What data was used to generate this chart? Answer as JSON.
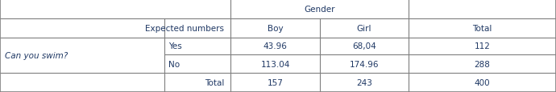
{
  "figsize": [
    6.9,
    1.16
  ],
  "dpi": 100,
  "bg_color": "#ffffff",
  "text_color": "#1f3864",
  "line_color": "#7f7f7f",
  "font_size": 7.5,
  "col_boundaries": [
    0.0,
    0.295,
    0.415,
    0.575,
    0.735,
    1.0
  ],
  "row_boundaries": [
    1.0,
    0.795,
    0.59,
    0.405,
    0.205,
    0.0
  ],
  "cells": {
    "row0_col01_merged": "",
    "row0_gender": "Gender",
    "row0_total": "",
    "row1_expected": "Expected numbers",
    "row1_boy": "Boy",
    "row1_girl": "Girl",
    "row1_total": "Total",
    "row2_canswim": "Can you swim?",
    "row2_yes": "Yes",
    "row2_v1": "43.96",
    "row2_v2": "68,04",
    "row2_v3": "112",
    "row3_no": "No",
    "row3_v1": "113.04",
    "row3_v2": "174.96",
    "row3_v3": "288",
    "row4_total_label": "Total",
    "row4_v1": "157",
    "row4_v2": "243",
    "row4_v3": "400"
  }
}
